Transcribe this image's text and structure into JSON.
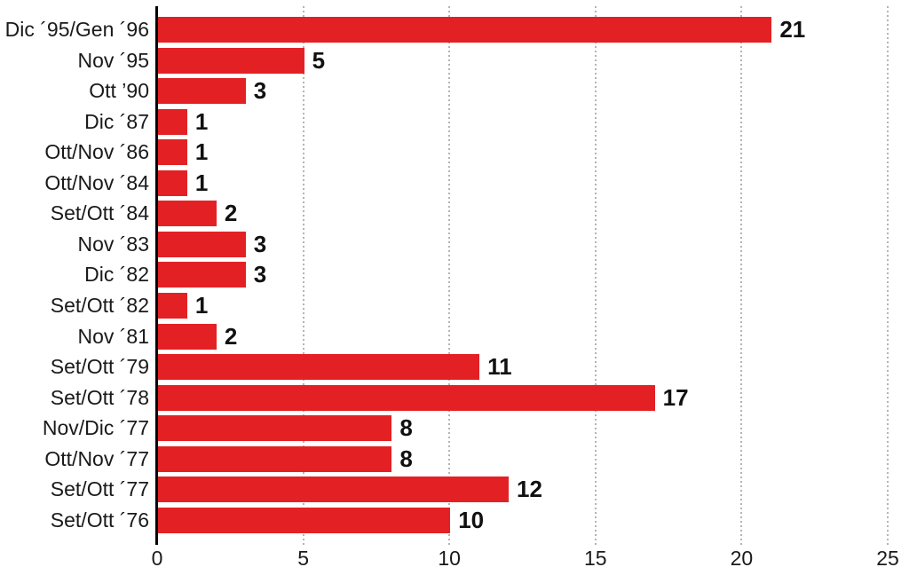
{
  "chart_data": {
    "type": "bar",
    "orientation": "horizontal",
    "title": "",
    "xlabel": "",
    "ylabel": "",
    "categories": [
      "Dic ´95/Gen ´96",
      "Nov ´95",
      "Ott ’90",
      "Dic ´87",
      "Ott/Nov ´86",
      "Ott/Nov ´84",
      "Set/Ott ´84",
      "Nov ´83",
      "Dic ´82",
      "Set/Ott ´82",
      "Nov ´81",
      "Set/Ott ´79",
      "Set/Ott ´78",
      "Nov/Dic ´77",
      "Ott/Nov ´77",
      "Set/Ott ´77",
      "Set/Ott ´76"
    ],
    "values": [
      21,
      5,
      3,
      1,
      1,
      1,
      2,
      3,
      3,
      1,
      2,
      11,
      17,
      8,
      8,
      12,
      10
    ],
    "xlim": [
      0,
      25
    ],
    "xticks": [
      0,
      5,
      10,
      15,
      20,
      25
    ],
    "grid": "dotted-vertical-at-xticks",
    "legend": "none",
    "colors": {
      "bar": "#e32124",
      "axis": "#000000",
      "gridline": "#b4b4b4",
      "category_label": "#1a1a1a",
      "value_label": "#111111",
      "background": "#ffffff"
    }
  }
}
